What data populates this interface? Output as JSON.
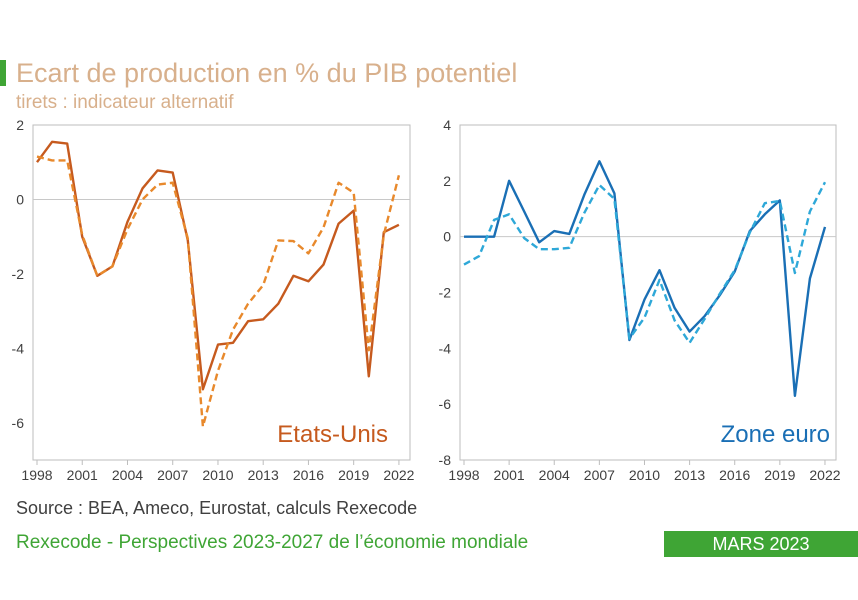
{
  "header": {
    "title": "Ecart de production en % du PIB potentiel",
    "subtitle": "tirets : indicateur alternatif"
  },
  "footer": {
    "source": "Source : BEA, Ameco, Eurostat, calculs Rexecode",
    "publisher": "Rexecode - Perspectives 2023-2027 de l’économie mondiale",
    "date": "MARS 2023"
  },
  "colors": {
    "us": "#c65a1e",
    "us_alt": "#e8892c",
    "ez": "#1a6fb5",
    "ez_alt": "#2ea8d8",
    "accent": "#3fa535"
  },
  "chart_data": [
    {
      "type": "line",
      "label": "Etats-Unis",
      "x": [
        1998,
        1999,
        2000,
        2001,
        2002,
        2003,
        2004,
        2005,
        2006,
        2007,
        2008,
        2009,
        2010,
        2011,
        2012,
        2013,
        2014,
        2015,
        2016,
        2017,
        2018,
        2019,
        2020,
        2021,
        2022
      ],
      "x_ticks": [
        1998,
        2001,
        2004,
        2007,
        2010,
        2013,
        2016,
        2019,
        2022
      ],
      "ylim": [
        -7,
        2
      ],
      "y_ticks": [
        2,
        0,
        -2,
        -4,
        -6
      ],
      "grid": false,
      "series": [
        {
          "style": "solid",
          "values": [
            1.0,
            1.55,
            1.5,
            -1.0,
            -2.05,
            -1.8,
            -0.6,
            0.3,
            0.78,
            0.72,
            -1.1,
            -5.1,
            -3.9,
            -3.85,
            -3.27,
            -3.22,
            -2.8,
            -2.05,
            -2.2,
            -1.75,
            -0.65,
            -0.3,
            -4.75,
            -0.88,
            -0.68
          ]
        },
        {
          "style": "dashed",
          "values": [
            1.15,
            1.05,
            1.05,
            -0.95,
            -2.05,
            -1.8,
            -0.8,
            0.0,
            0.4,
            0.45,
            -1.05,
            -6.1,
            -4.6,
            -3.5,
            -2.8,
            -2.3,
            -1.1,
            -1.12,
            -1.45,
            -0.75,
            0.45,
            0.18,
            -4.05,
            -0.95,
            0.65
          ]
        }
      ]
    },
    {
      "type": "line",
      "label": "Zone euro",
      "x": [
        1998,
        1999,
        2000,
        2001,
        2002,
        2003,
        2004,
        2005,
        2006,
        2007,
        2008,
        2009,
        2010,
        2011,
        2012,
        2013,
        2014,
        2015,
        2016,
        2017,
        2018,
        2019,
        2020,
        2021,
        2022
      ],
      "x_ticks": [
        1998,
        2001,
        2004,
        2007,
        2010,
        2013,
        2016,
        2019,
        2022
      ],
      "ylim": [
        -8,
        4
      ],
      "y_ticks": [
        4,
        2,
        0,
        -2,
        -4,
        -6,
        -8
      ],
      "grid": false,
      "series": [
        {
          "style": "solid",
          "values": [
            0.0,
            0.0,
            0.0,
            2.0,
            0.9,
            -0.2,
            0.2,
            0.1,
            1.5,
            2.7,
            1.55,
            -3.7,
            -2.25,
            -1.2,
            -2.55,
            -3.4,
            -2.85,
            -2.1,
            -1.25,
            0.2,
            0.8,
            1.3,
            -5.7,
            -1.5,
            0.35
          ]
        },
        {
          "style": "dashed",
          "values": [
            -1.0,
            -0.7,
            0.6,
            0.8,
            -0.05,
            -0.45,
            -0.45,
            -0.4,
            0.85,
            1.85,
            1.35,
            -3.65,
            -2.9,
            -1.55,
            -3.0,
            -3.8,
            -2.95,
            -2.05,
            -1.2,
            0.15,
            1.2,
            1.28,
            -1.3,
            0.9,
            1.95
          ]
        }
      ]
    }
  ]
}
